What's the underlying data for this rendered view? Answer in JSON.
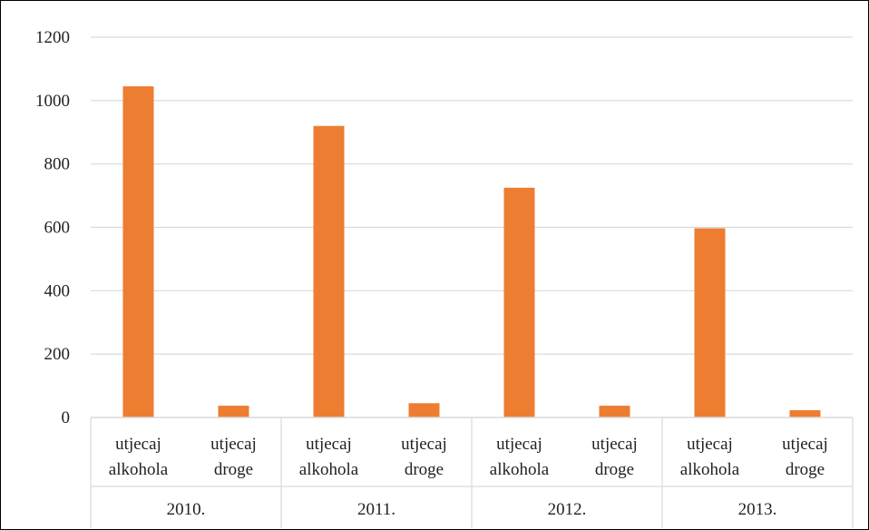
{
  "chart_data": {
    "type": "bar",
    "title": "",
    "xlabel": "",
    "ylabel": "",
    "ylim": [
      0,
      1200
    ],
    "yticks": [
      0,
      200,
      400,
      600,
      800,
      1000,
      1200
    ],
    "grid": true,
    "legend": "none",
    "bar_color": "#ED7D31",
    "grid_color": "#D9D9D9",
    "groups": [
      {
        "label": "2010.",
        "bars": [
          {
            "label_line1": "utjecaj",
            "label_line2": "alkohola",
            "value": 1045
          },
          {
            "label_line1": "utjecaj",
            "label_line2": "droge",
            "value": 37
          }
        ]
      },
      {
        "label": "2011.",
        "bars": [
          {
            "label_line1": "utjecaj",
            "label_line2": "alkohola",
            "value": 920
          },
          {
            "label_line1": "utjecaj",
            "label_line2": "droge",
            "value": 45
          }
        ]
      },
      {
        "label": "2012.",
        "bars": [
          {
            "label_line1": "utjecaj",
            "label_line2": "alkohola",
            "value": 725
          },
          {
            "label_line1": "utjecaj",
            "label_line2": "droge",
            "value": 37
          }
        ]
      },
      {
        "label": "2013.",
        "bars": [
          {
            "label_line1": "utjecaj",
            "label_line2": "alkohola",
            "value": 597
          },
          {
            "label_line1": "utjecaj",
            "label_line2": "droge",
            "value": 23
          }
        ]
      }
    ]
  }
}
